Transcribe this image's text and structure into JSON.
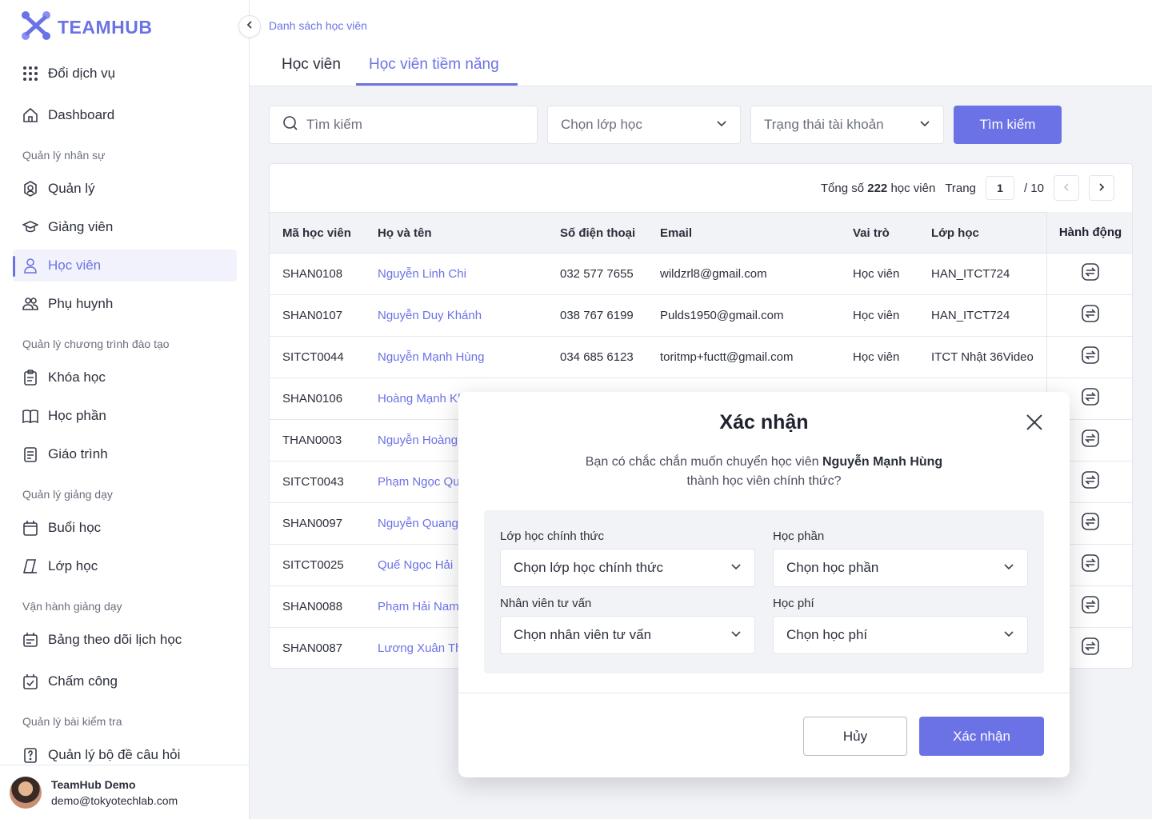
{
  "app": {
    "logo_text": "TEAMHUB",
    "brand_color": "#6b72e6"
  },
  "sidebar": {
    "items": [
      {
        "label": "Đổi dịch vụ",
        "icon": "grid-icon"
      },
      {
        "label": "Dashboard",
        "icon": "home-icon"
      },
      {
        "label": "Quản lý",
        "icon": "manager-icon"
      },
      {
        "label": "Giảng viên",
        "icon": "teacher-icon"
      },
      {
        "label": "Học viên",
        "icon": "user-icon",
        "active": true
      },
      {
        "label": "Phụ huynh",
        "icon": "users-icon"
      },
      {
        "label": "Khóa học",
        "icon": "course-icon"
      },
      {
        "label": "Học phần",
        "icon": "book-icon"
      },
      {
        "label": "Giáo trình",
        "icon": "document-icon"
      },
      {
        "label": "Buổi học",
        "icon": "calendar-icon"
      },
      {
        "label": "Lớp học",
        "icon": "classroom-icon"
      },
      {
        "label": "Bảng theo dõi lịch học",
        "icon": "schedule-icon"
      },
      {
        "label": "Chấm công",
        "icon": "calendar-check-icon"
      },
      {
        "label": "Quản lý bộ đề câu hỏi",
        "icon": "question-icon"
      }
    ],
    "sections": [
      "Quản lý nhân sự",
      "Quản lý chương trình đào tạo",
      "Quản lý giảng dạy",
      "Vận hành giảng dạy",
      "Quản lý bài kiểm tra"
    ],
    "user": {
      "name": "TeamHub Demo",
      "email": "demo@tokyotechlab.com"
    }
  },
  "header": {
    "breadcrumb": "Danh sách học viên",
    "tabs": [
      {
        "label": "Học viên"
      },
      {
        "label": "Học viên tiềm năng",
        "active": true
      }
    ]
  },
  "filters": {
    "search_placeholder": "Tìm kiếm",
    "class_select": "Chọn lớp học",
    "status_select": "Trạng thái tài khoản",
    "search_button": "Tìm kiếm"
  },
  "pagination": {
    "total_prefix": "Tổng số",
    "total": "222",
    "total_suffix": "học viên",
    "page_label": "Trang",
    "page": "1",
    "page_total": "/ 10"
  },
  "table": {
    "headers": [
      "Mã học viên",
      "Họ và tên",
      "Số điện thoại",
      "Email",
      "Vai trò",
      "Lớp học",
      "Hành động"
    ],
    "rows": [
      {
        "id": "SHAN0108",
        "name": "Nguyễn Linh Chi",
        "phone": "032 577 7655",
        "email": "wildzrl8@gmail.com",
        "role": "Học viên",
        "class": "HAN_ITCT724"
      },
      {
        "id": "SHAN0107",
        "name": "Nguyễn Duy Khánh",
        "phone": "038 767 6199",
        "email": "Pulds1950@gmail.com",
        "role": "Học viên",
        "class": "HAN_ITCT724"
      },
      {
        "id": "SITCT0044",
        "name": "Nguyễn Mạnh Hùng",
        "phone": "034 685 6123",
        "email": "toritmp+fuctt@gmail.com",
        "role": "Học viên",
        "class": "ITCT Nhật 36Video"
      },
      {
        "id": "SHAN0106",
        "name": "Hoàng Mạnh Kh",
        "phone": "",
        "email": "",
        "role": "",
        "class": ""
      },
      {
        "id": "THAN0003",
        "name": "Nguyễn Hoàng",
        "phone": "",
        "email": "",
        "role": "",
        "class": ""
      },
      {
        "id": "SITCT0043",
        "name": "Phạm Ngọc Qu",
        "phone": "",
        "email": "",
        "role": "",
        "class": ""
      },
      {
        "id": "SHAN0097",
        "name": "Nguyễn Quang",
        "phone": "",
        "email": "",
        "role": "",
        "class": ""
      },
      {
        "id": "SITCT0025",
        "name": "Quế Ngọc Hải",
        "phone": "",
        "email": "",
        "role": "",
        "class": ""
      },
      {
        "id": "SHAN0088",
        "name": "Phạm Hải Nam",
        "phone": "",
        "email": "",
        "role": "",
        "class": ""
      },
      {
        "id": "SHAN0087",
        "name": "Lương Xuân Th",
        "phone": "",
        "email": "",
        "role": "",
        "class": ""
      }
    ]
  },
  "modal": {
    "title": "Xác nhận",
    "message_prefix": "Bạn có chắc chắn muốn chuyển học viên",
    "student_name": "Nguyễn Mạnh Hùng",
    "message_suffix": "thành học viên chính thức?",
    "fields": {
      "official_class_label": "Lớp học chính thức",
      "official_class_value": "Chọn lớp học chính thức",
      "module_label": "Học phần",
      "module_value": "Chọn học phần",
      "consultant_label": "Nhân viên tư vấn",
      "consultant_value": "Chọn nhân viên tư vấn",
      "fee_label": "Học phí",
      "fee_value": "Chọn học phí"
    },
    "cancel": "Hủy",
    "confirm": "Xác nhận"
  }
}
